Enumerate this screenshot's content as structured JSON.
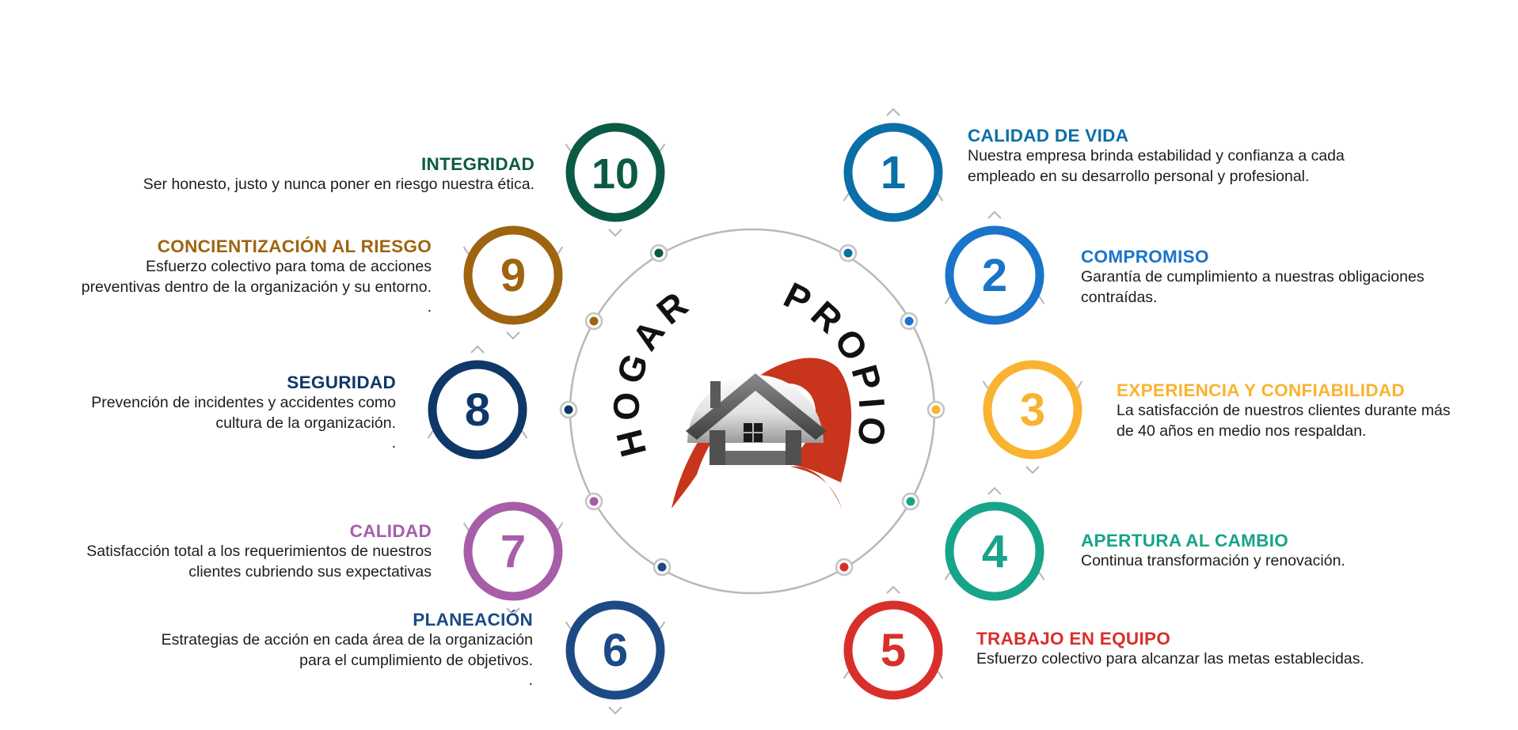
{
  "logo": {
    "word1": "HOGAR",
    "word2": "PROPIO"
  },
  "values": [
    {
      "number": "1",
      "title": "CALIDAD DE VIDA",
      "description": "Nuestra empresa brinda estabilidad y confianza a cada\nempleado en su desarrollo personal y profesional.",
      "color": "#0a6fa6"
    },
    {
      "number": "2",
      "title": "COMPROMISO",
      "description": "Garantía de cumplimiento a nuestras obligaciones\ncontraídas.",
      "color": "#1a74c9"
    },
    {
      "number": "3",
      "title": "EXPERIENCIA Y CONFIABILIDAD",
      "description": "La satisfacción de nuestros clientes durante más\nde 40 años en medio nos respaldan.",
      "color": "#f9b330"
    },
    {
      "number": "4",
      "title": "APERTURA AL CAMBIO",
      "description": "Continua transformación y renovación.",
      "color": "#17a489"
    },
    {
      "number": "5",
      "title": "TRABAJO EN EQUIPO",
      "description": "Esfuerzo colectivo para alcanzar las metas establecidas.",
      "color": "#d92f2a"
    },
    {
      "number": "6",
      "title": "PLANEACIÓN",
      "description": "Estrategias de acción en cada área de la organización\npara el cumplimiento de objetivos.\n.",
      "color": "#1c4a84"
    },
    {
      "number": "7",
      "title": "CALIDAD",
      "description": "Satisfacción total a los requerimientos de nuestros\nclientes cubriendo sus expectativas",
      "color": "#a65ea9"
    },
    {
      "number": "8",
      "title": "SEGURIDAD",
      "description": "Prevención de incidentes y accidentes como\ncultura de la organización.\n.",
      "color": "#0f3768"
    },
    {
      "number": "9",
      "title": "CONCIENTIZACIÓN AL RIESGO",
      "description": "Esfuerzo colectivo para toma de acciones\npreventivas dentro de la organización y su entorno.\n.",
      "color": "#9e6410"
    },
    {
      "number": "10",
      "title": "INTEGRIDAD",
      "description": "Ser honesto, justo y nunca poner en riesgo nuestra ética.",
      "color": "#0b5a45"
    }
  ]
}
